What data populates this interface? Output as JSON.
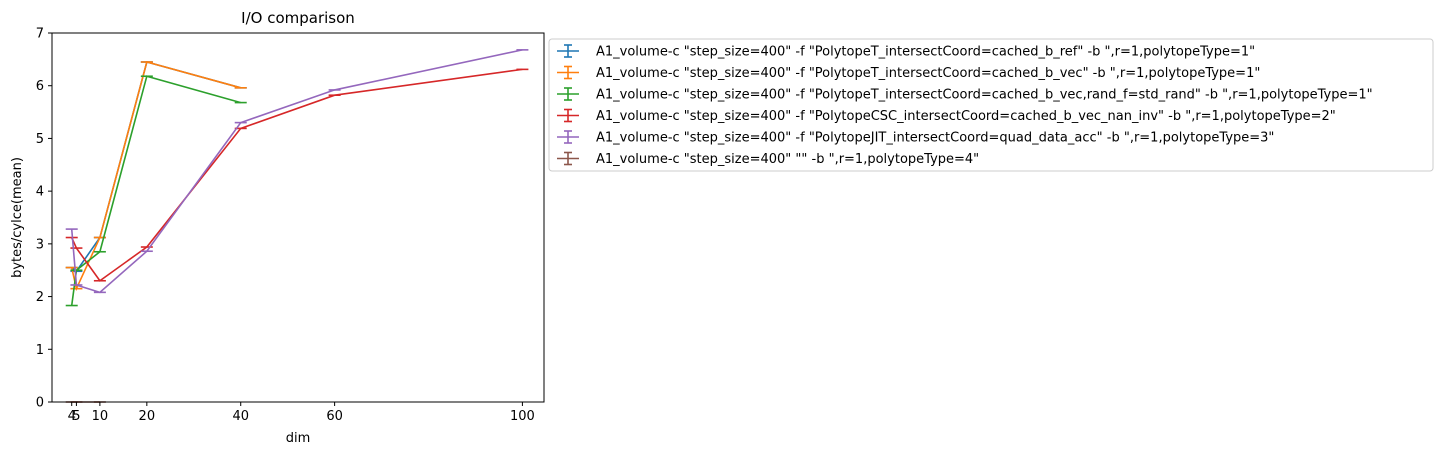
{
  "chart_data": {
    "type": "line",
    "title": "I/O comparison",
    "xlabel": "dim",
    "ylabel": "bytes/cylce(mean)",
    "xlim": [
      -0.2,
      104.6
    ],
    "ylim": [
      0,
      7
    ],
    "xticks": [
      4,
      5,
      10,
      20,
      40,
      60,
      100
    ],
    "yticks": [
      0,
      1,
      2,
      3,
      4,
      5,
      6,
      7
    ],
    "legend_position": "outside-upper-right",
    "series": [
      {
        "name": "A1_volume-c \"step_size=400\" -f \"PolytopeT_intersectCoord=cached_b_ref\" -b \",r=1,polytopeType=1\"",
        "color": "#1f77b4",
        "x": [
          4,
          5,
          10,
          20,
          40
        ],
        "y": [
          2.55,
          2.48,
          3.12,
          6.45,
          5.96
        ]
      },
      {
        "name": "A1_volume-c \"step_size=400\" -f \"PolytopeT_intersectCoord=cached_b_vec\" -b \",r=1,polytopeType=1\"",
        "color": "#ff7f0e",
        "x": [
          4,
          5,
          10,
          20,
          40
        ],
        "y": [
          2.55,
          2.15,
          3.12,
          6.45,
          5.96
        ]
      },
      {
        "name": "A1_volume-c \"step_size=400\" -f \"PolytopeT_intersectCoord=cached_b_vec,rand_f=std_rand\" -b \",r=1,polytopeType=1\"",
        "color": "#2ca02c",
        "x": [
          4,
          5,
          10,
          20,
          40
        ],
        "y": [
          1.83,
          2.5,
          2.85,
          6.18,
          5.68
        ]
      },
      {
        "name": "A1_volume-c \"step_size=400\" -f \"PolytopeCSC_intersectCoord=cached_b_vec_nan_inv\" -b \",r=1,polytopeType=2\"",
        "color": "#d62728",
        "x": [
          4,
          5,
          10,
          20,
          40,
          60,
          100
        ],
        "y": [
          3.12,
          2.92,
          2.3,
          2.94,
          5.19,
          5.82,
          6.31
        ]
      },
      {
        "name": "A1_volume-c \"step_size=400\" -f \"PolytopeJIT_intersectCoord=quad_data_acc\" -b \",r=1,polytopeType=3\"",
        "color": "#9467bd",
        "x": [
          4,
          5,
          10,
          20,
          40,
          60,
          100
        ],
        "y": [
          3.28,
          2.22,
          2.08,
          2.86,
          5.3,
          5.92,
          6.68
        ]
      },
      {
        "name": "A1_volume-c \"step_size=400\"  \"\" -b \",r=1,polytopeType=4\"",
        "color": "#8c564b",
        "x": [
          4,
          5,
          10
        ],
        "y": [
          0,
          0,
          0
        ]
      }
    ]
  }
}
